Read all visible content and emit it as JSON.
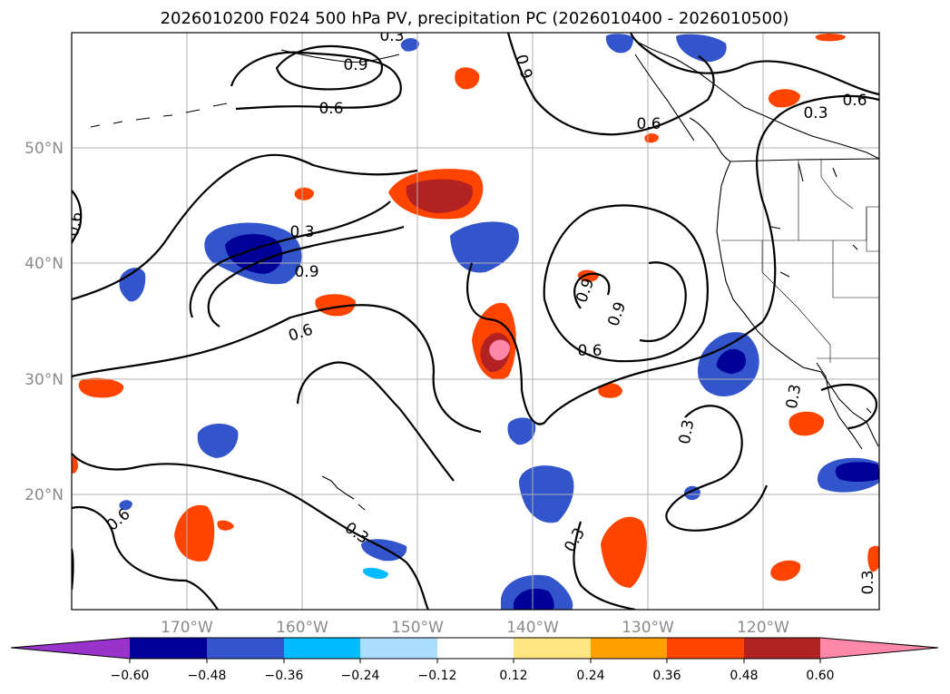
{
  "title": "2026010200 F024 500 hPa PV, precipitation PC (2026010400 - 2026010500)",
  "lat_ticks": [
    "50°N",
    "40°N",
    "30°N",
    "20°N"
  ],
  "lon_ticks": [
    "170°W",
    "160°W",
    "150°W",
    "140°W",
    "130°W",
    "120°W"
  ],
  "colorbar": {
    "ticks": [
      "−0.60",
      "−0.48",
      "−0.36",
      "−0.24",
      "−0.12",
      "0.12",
      "0.24",
      "0.36",
      "0.48",
      "0.60"
    ],
    "colors": [
      "#9933cc",
      "#000099",
      "#3355cc",
      "#00bbff",
      "#aaddff",
      "#ffffff",
      "#ffe680",
      "#ffa000",
      "#ff4400",
      "#b22222",
      "#ff88aa"
    ]
  },
  "contour_labels": {
    "a": "0.6",
    "b": "0.9",
    "c": "0.6",
    "d": "0.9",
    "e": "0.3",
    "f": "0.9",
    "g": "0.6",
    "h": "0.3",
    "i": "0.3",
    "j": "0.6",
    "k": "0.6",
    "l": "0.6",
    "m": "0.9",
    "n": "0.9",
    "o": "0.6",
    "p": "0.3",
    "q": "0.3",
    "r": "0.3",
    "s": "0.3",
    "t": "0.3"
  },
  "chart_data": {
    "type": "map",
    "title": "2026010200 F024 500 hPa PV, precipitation PC (2026010400 - 2026010500)",
    "variable_contours": "500 hPa PV",
    "variable_shaded": "precipitation PC",
    "lon_range": [
      -180,
      -110
    ],
    "lat_range": [
      10,
      60
    ],
    "contour_levels": [
      0.3,
      0.6,
      0.9
    ],
    "color_levels": [
      -0.6,
      -0.48,
      -0.36,
      -0.24,
      -0.12,
      0.12,
      0.24,
      0.36,
      0.48,
      0.6
    ]
  }
}
